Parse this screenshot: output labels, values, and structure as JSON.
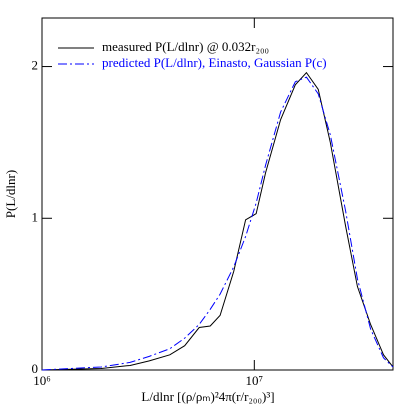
{
  "chart_data": {
    "type": "line",
    "xlabel": "L/dlnr [(ρ/ρₘ)²4π(r/r₂₀₀)³]",
    "ylabel": "P(L/dlnr)",
    "x": [
      1000000,
      1900000,
      2600000,
      3200000,
      4000000,
      4700000,
      5500000,
      6200000,
      6900000,
      8000000,
      9100000,
      10200000,
      11300000,
      13300000,
      15600000,
      17600000,
      20000000,
      22800000,
      26900000,
      30600000,
      35300000,
      40600000,
      45000000
    ],
    "series": [
      {
        "name": "measured P(L/dlnr) @ 0.032r₂₀₀",
        "color": "#000000",
        "dash": false,
        "values": [
          0,
          0.01,
          0.03,
          0.06,
          0.1,
          0.16,
          0.28,
          0.29,
          0.36,
          0.65,
          0.99,
          1.03,
          1.3,
          1.65,
          1.88,
          1.96,
          1.85,
          1.5,
          0.95,
          0.55,
          0.3,
          0.1,
          0.02
        ]
      },
      {
        "name": "predicted P(L/dlnr), Einasto, Gaussian P(c)",
        "color": "#0000ff",
        "dash": true,
        "values": [
          0,
          0.02,
          0.05,
          0.09,
          0.14,
          0.21,
          0.3,
          0.4,
          0.5,
          0.68,
          0.88,
          1.1,
          1.35,
          1.7,
          1.9,
          1.93,
          1.82,
          1.55,
          1.05,
          0.6,
          0.27,
          0.08,
          0.02
        ]
      }
    ],
    "xscale": "log",
    "xlim": [
      1000000,
      45000000
    ],
    "xticks": [
      {
        "value": 1000000,
        "label": "10⁶"
      },
      {
        "value": 10000000,
        "label": "10⁷"
      }
    ],
    "ylim": [
      0,
      2.32
    ],
    "yticks": [
      0,
      1,
      2
    ],
    "legend": "upper left"
  }
}
